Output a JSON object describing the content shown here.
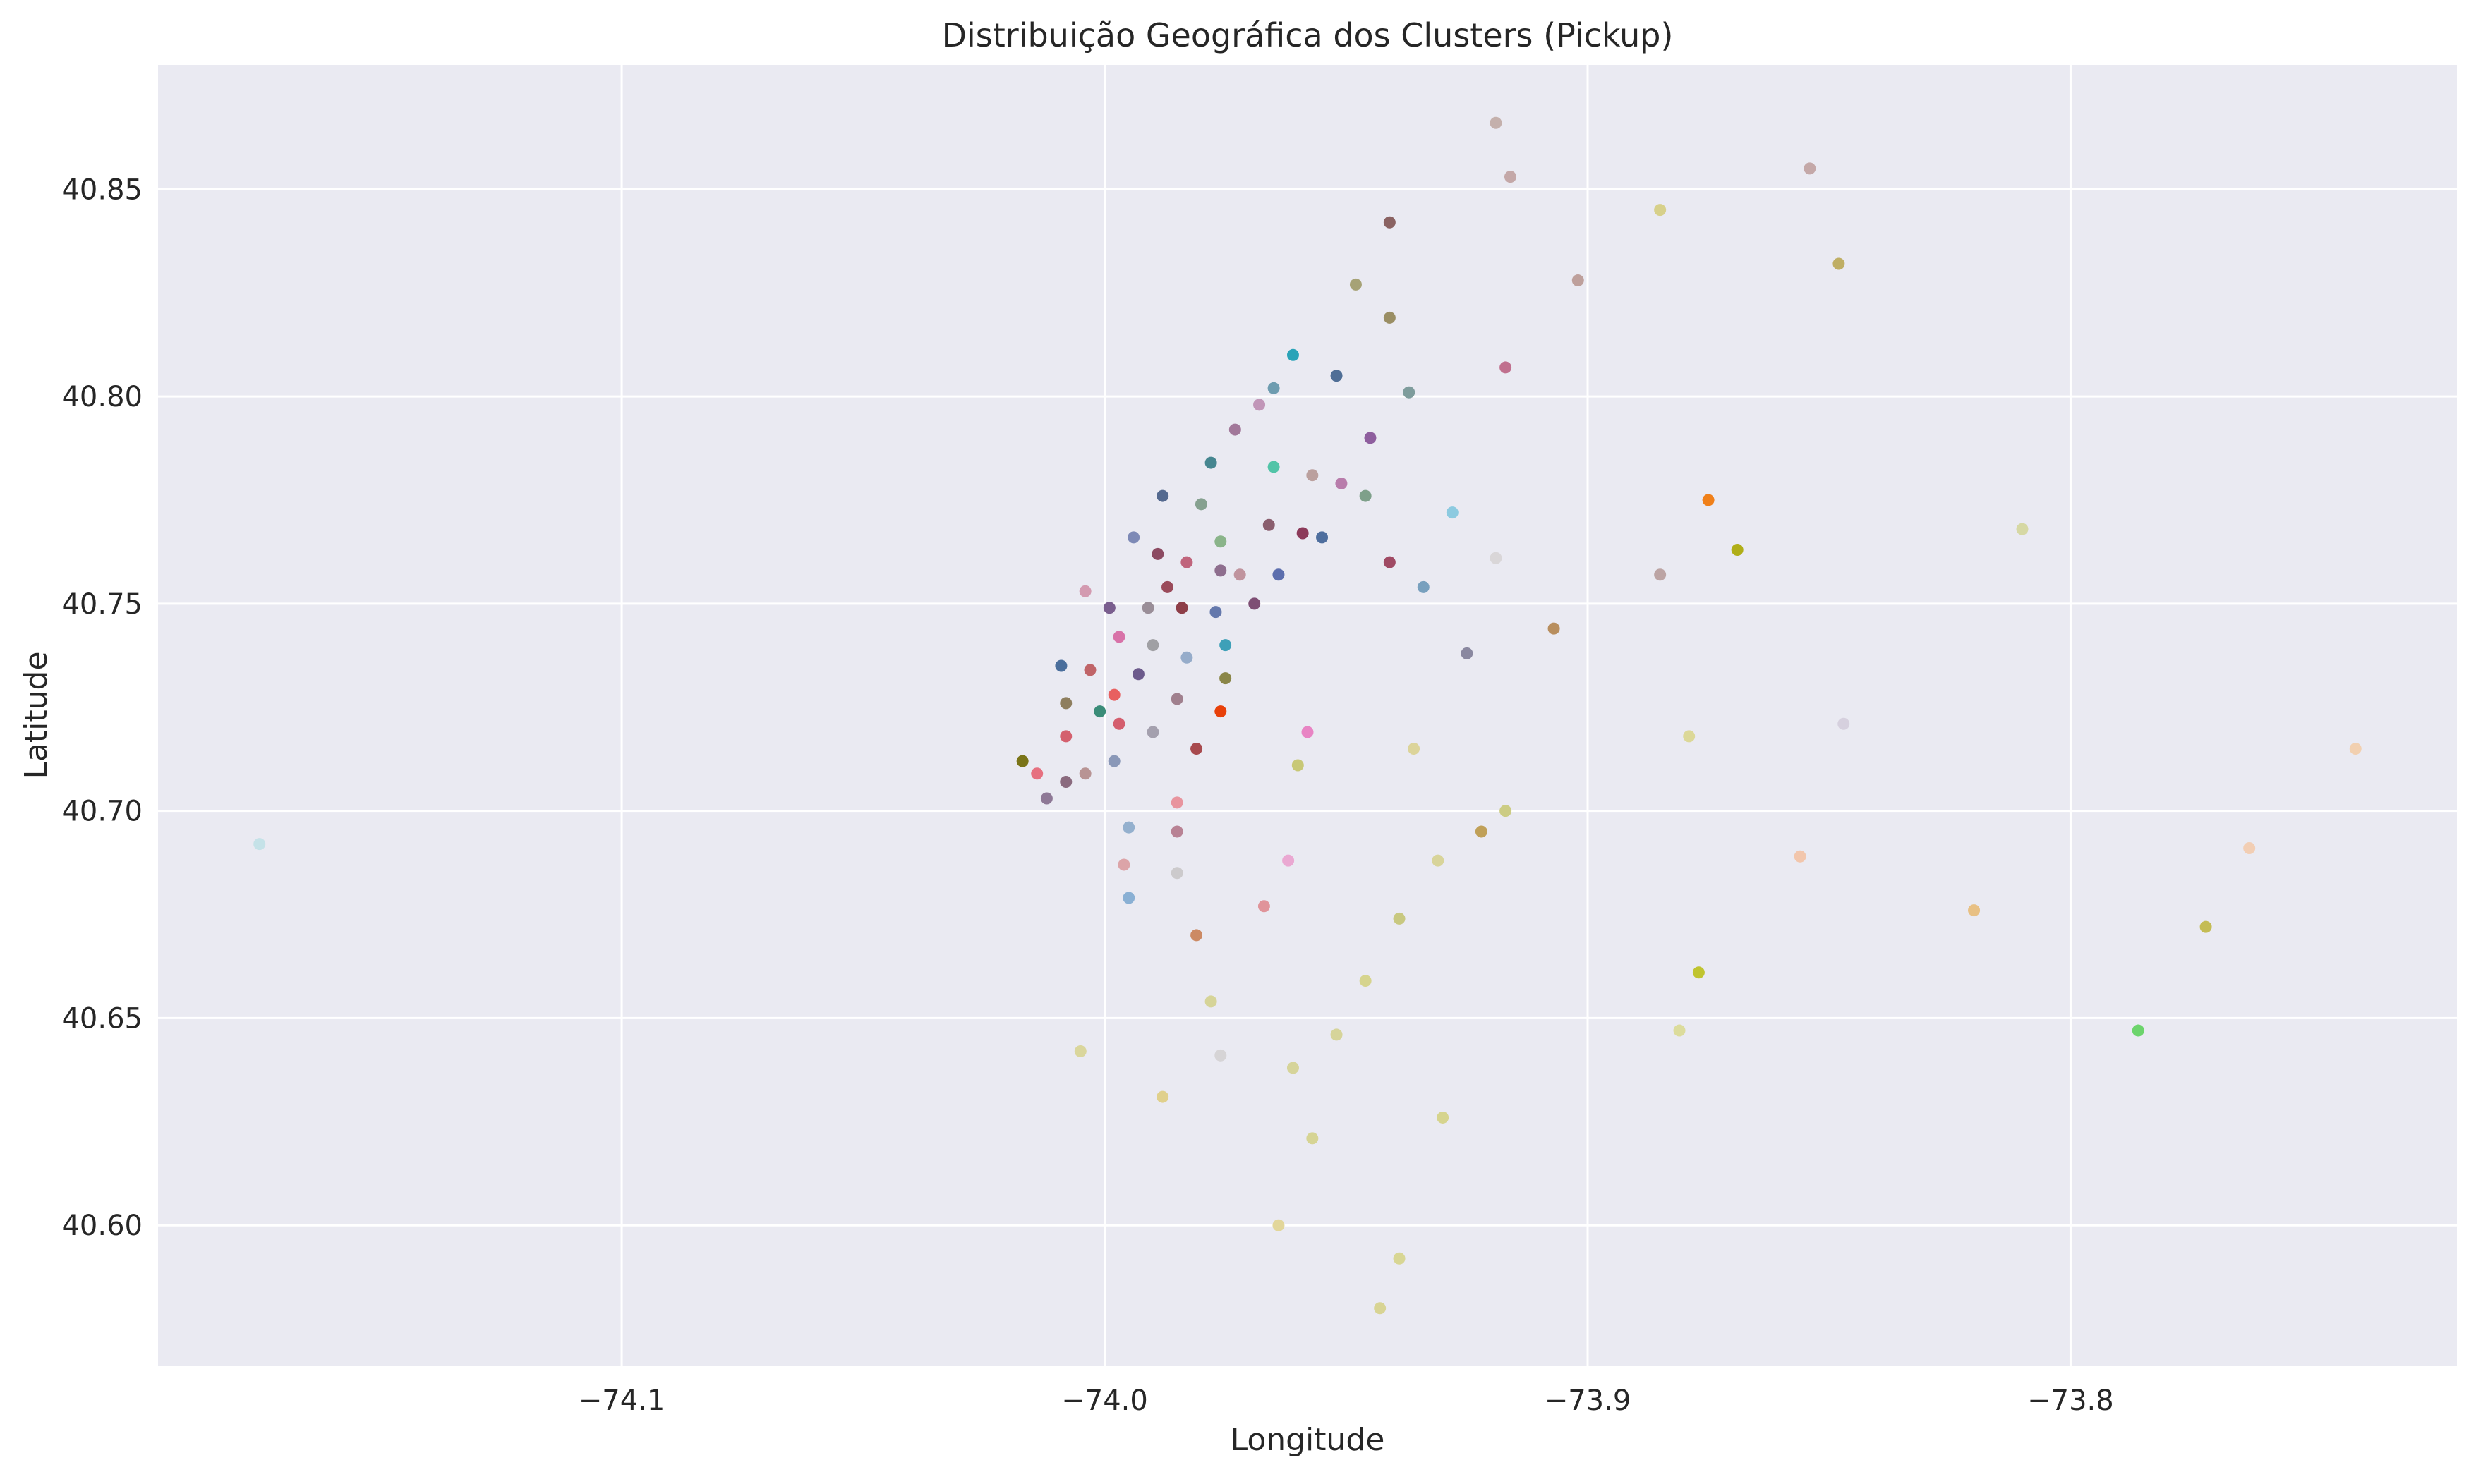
{
  "chart_data": {
    "type": "scatter",
    "title": "Distribuição Geográfica dos Clusters (Pickup)",
    "xlabel": "Longitude",
    "ylabel": "Latitude",
    "xlim": [
      -74.196,
      -73.72
    ],
    "ylim": [
      40.566,
      40.88
    ],
    "xticks": [
      -74.1,
      -74.0,
      -73.9,
      -73.8
    ],
    "xtick_labels": [
      "−74.1",
      "−74.0",
      "−73.9",
      "−73.8"
    ],
    "yticks": [
      40.6,
      40.65,
      40.7,
      40.75,
      40.8,
      40.85
    ],
    "ytick_labels": [
      "40.60",
      "40.65",
      "40.70",
      "40.75",
      "40.80",
      "40.85"
    ],
    "grid": true,
    "background": "#eaeaf2",
    "grid_color": "#ffffff",
    "points": [
      {
        "x": -74.175,
        "y": 40.692,
        "color": "#c5e2e8"
      },
      {
        "x": -74.004,
        "y": 40.753,
        "color": "#d39ab0"
      },
      {
        "x": -73.999,
        "y": 40.749,
        "color": "#7a5e8e"
      },
      {
        "x": -73.994,
        "y": 40.766,
        "color": "#7d89b6"
      },
      {
        "x": -73.988,
        "y": 40.776,
        "color": "#54698f"
      },
      {
        "x": -73.989,
        "y": 40.762,
        "color": "#8c4a62"
      },
      {
        "x": -73.983,
        "y": 40.76,
        "color": "#c0647c"
      },
      {
        "x": -73.98,
        "y": 40.774,
        "color": "#86a190"
      },
      {
        "x": -73.978,
        "y": 40.784,
        "color": "#468690"
      },
      {
        "x": -73.973,
        "y": 40.792,
        "color": "#a2789a"
      },
      {
        "x": -73.968,
        "y": 40.798,
        "color": "#c196b8"
      },
      {
        "x": -73.965,
        "y": 40.802,
        "color": "#6e9cb0"
      },
      {
        "x": -73.961,
        "y": 40.81,
        "color": "#2aa3b8"
      },
      {
        "x": -73.952,
        "y": 40.805,
        "color": "#4f6e96"
      },
      {
        "x": -73.937,
        "y": 40.801,
        "color": "#7e9c9c"
      },
      {
        "x": -73.965,
        "y": 40.783,
        "color": "#52c4a8"
      },
      {
        "x": -73.957,
        "y": 40.781,
        "color": "#bba09e"
      },
      {
        "x": -73.951,
        "y": 40.779,
        "color": "#b87cab"
      },
      {
        "x": -73.946,
        "y": 40.776,
        "color": "#7ea08a"
      },
      {
        "x": -73.945,
        "y": 40.79,
        "color": "#8e5e9e"
      },
      {
        "x": -73.941,
        "y": 40.842,
        "color": "#8a6262"
      },
      {
        "x": -73.941,
        "y": 40.819,
        "color": "#9a8e64"
      },
      {
        "x": -73.948,
        "y": 40.827,
        "color": "#a6a276"
      },
      {
        "x": -73.919,
        "y": 40.866,
        "color": "#c4b0ac"
      },
      {
        "x": -73.916,
        "y": 40.853,
        "color": "#c4a8a8"
      },
      {
        "x": -73.917,
        "y": 40.807,
        "color": "#c0708e"
      },
      {
        "x": -73.902,
        "y": 40.828,
        "color": "#bea09c"
      },
      {
        "x": -73.885,
        "y": 40.845,
        "color": "#d7d08a"
      },
      {
        "x": -73.854,
        "y": 40.855,
        "color": "#c4a8a8"
      },
      {
        "x": -73.848,
        "y": 40.832,
        "color": "#bfae64"
      },
      {
        "x": -73.976,
        "y": 40.765,
        "color": "#8ab48a"
      },
      {
        "x": -73.976,
        "y": 40.758,
        "color": "#8e6e8e"
      },
      {
        "x": -73.972,
        "y": 40.757,
        "color": "#c0949e"
      },
      {
        "x": -73.966,
        "y": 40.769,
        "color": "#8a5e6e"
      },
      {
        "x": -73.959,
        "y": 40.767,
        "color": "#8c3a5a"
      },
      {
        "x": -73.955,
        "y": 40.766,
        "color": "#4e6e9e"
      },
      {
        "x": -73.964,
        "y": 40.757,
        "color": "#5c6eae"
      },
      {
        "x": -73.941,
        "y": 40.76,
        "color": "#a04a64"
      },
      {
        "x": -73.934,
        "y": 40.754,
        "color": "#78a0be"
      },
      {
        "x": -73.928,
        "y": 40.772,
        "color": "#8ccae0"
      },
      {
        "x": -73.919,
        "y": 40.761,
        "color": "#d9d6d8"
      },
      {
        "x": -73.925,
        "y": 40.738,
        "color": "#8a88a0"
      },
      {
        "x": -73.907,
        "y": 40.744,
        "color": "#b88e5e"
      },
      {
        "x": -73.885,
        "y": 40.757,
        "color": "#bca4a4"
      },
      {
        "x": -73.875,
        "y": 40.775,
        "color": "#f0801a"
      },
      {
        "x": -73.869,
        "y": 40.763,
        "color": "#b0ae18"
      },
      {
        "x": -73.81,
        "y": 40.768,
        "color": "#d6d8a4"
      },
      {
        "x": -73.987,
        "y": 40.754,
        "color": "#9a4a5a"
      },
      {
        "x": -73.984,
        "y": 40.749,
        "color": "#8e3e48"
      },
      {
        "x": -73.977,
        "y": 40.748,
        "color": "#6478ac"
      },
      {
        "x": -73.969,
        "y": 40.75,
        "color": "#7e4e74"
      },
      {
        "x": -73.991,
        "y": 40.749,
        "color": "#9a8e98"
      },
      {
        "x": -73.997,
        "y": 40.742,
        "color": "#d872a8"
      },
      {
        "x": -73.99,
        "y": 40.74,
        "color": "#a0a0a4"
      },
      {
        "x": -73.983,
        "y": 40.737,
        "color": "#96acca"
      },
      {
        "x": -73.975,
        "y": 40.74,
        "color": "#3ea0b8"
      },
      {
        "x": -73.975,
        "y": 40.732,
        "color": "#8a8648"
      },
      {
        "x": -74.009,
        "y": 40.735,
        "color": "#4a6e9c"
      },
      {
        "x": -74.003,
        "y": 40.734,
        "color": "#c06468"
      },
      {
        "x": -73.993,
        "y": 40.733,
        "color": "#6c5a8c"
      },
      {
        "x": -73.998,
        "y": 40.728,
        "color": "#e86060"
      },
      {
        "x": -73.985,
        "y": 40.727,
        "color": "#a0808e"
      },
      {
        "x": -74.008,
        "y": 40.726,
        "color": "#8e7e5e"
      },
      {
        "x": -74.001,
        "y": 40.724,
        "color": "#3a8c78"
      },
      {
        "x": -73.997,
        "y": 40.721,
        "color": "#d45e6e"
      },
      {
        "x": -73.99,
        "y": 40.719,
        "color": "#a4a0ae"
      },
      {
        "x": -73.976,
        "y": 40.724,
        "color": "#e8400a"
      },
      {
        "x": -73.981,
        "y": 40.715,
        "color": "#a84a4e"
      },
      {
        "x": -74.008,
        "y": 40.718,
        "color": "#d4606e"
      },
      {
        "x": -74.017,
        "y": 40.712,
        "color": "#7a7418"
      },
      {
        "x": -73.998,
        "y": 40.712,
        "color": "#8a98b8"
      },
      {
        "x": -74.014,
        "y": 40.709,
        "color": "#e67080"
      },
      {
        "x": -74.004,
        "y": 40.709,
        "color": "#b89494"
      },
      {
        "x": -74.008,
        "y": 40.707,
        "color": "#8a6a7e"
      },
      {
        "x": -74.012,
        "y": 40.703,
        "color": "#8e7896"
      },
      {
        "x": -73.958,
        "y": 40.719,
        "color": "#e884c4"
      },
      {
        "x": -73.96,
        "y": 40.711,
        "color": "#c8c876"
      },
      {
        "x": -73.936,
        "y": 40.715,
        "color": "#dcd49a"
      },
      {
        "x": -73.879,
        "y": 40.718,
        "color": "#dcd898"
      },
      {
        "x": -73.847,
        "y": 40.721,
        "color": "#d6d0de"
      },
      {
        "x": -73.741,
        "y": 40.715,
        "color": "#f2d0b0"
      },
      {
        "x": -73.985,
        "y": 40.702,
        "color": "#e8949e"
      },
      {
        "x": -73.995,
        "y": 40.696,
        "color": "#94b0ce"
      },
      {
        "x": -73.985,
        "y": 40.695,
        "color": "#b88294"
      },
      {
        "x": -73.917,
        "y": 40.7,
        "color": "#cccc84"
      },
      {
        "x": -73.922,
        "y": 40.695,
        "color": "#c0a058"
      },
      {
        "x": -73.931,
        "y": 40.688,
        "color": "#d8d49a"
      },
      {
        "x": -73.962,
        "y": 40.688,
        "color": "#eaa8d2"
      },
      {
        "x": -73.996,
        "y": 40.687,
        "color": "#dca4a8"
      },
      {
        "x": -73.985,
        "y": 40.685,
        "color": "#cccacc"
      },
      {
        "x": -73.995,
        "y": 40.679,
        "color": "#8ab0d4"
      },
      {
        "x": -73.967,
        "y": 40.677,
        "color": "#e0949a"
      },
      {
        "x": -73.981,
        "y": 40.67,
        "color": "#cc8a64"
      },
      {
        "x": -73.939,
        "y": 40.674,
        "color": "#c8c880"
      },
      {
        "x": -73.856,
        "y": 40.689,
        "color": "#f2c6ac"
      },
      {
        "x": -73.82,
        "y": 40.676,
        "color": "#e8c084"
      },
      {
        "x": -73.763,
        "y": 40.691,
        "color": "#f2ceb4"
      },
      {
        "x": -73.772,
        "y": 40.672,
        "color": "#c4bc54"
      },
      {
        "x": -73.877,
        "y": 40.661,
        "color": "#c0c430"
      },
      {
        "x": -73.946,
        "y": 40.659,
        "color": "#d6d48e"
      },
      {
        "x": -73.978,
        "y": 40.654,
        "color": "#d6d498"
      },
      {
        "x": -73.952,
        "y": 40.646,
        "color": "#d6d49a"
      },
      {
        "x": -73.881,
        "y": 40.647,
        "color": "#dcdc9c"
      },
      {
        "x": -73.786,
        "y": 40.647,
        "color": "#6cd46c"
      },
      {
        "x": -74.005,
        "y": 40.642,
        "color": "#dad69c"
      },
      {
        "x": -73.976,
        "y": 40.641,
        "color": "#d6d4d6"
      },
      {
        "x": -73.961,
        "y": 40.638,
        "color": "#d6d49a"
      },
      {
        "x": -73.988,
        "y": 40.631,
        "color": "#e0d08c"
      },
      {
        "x": -73.93,
        "y": 40.626,
        "color": "#d6d48e"
      },
      {
        "x": -73.957,
        "y": 40.621,
        "color": "#d6d494"
      },
      {
        "x": -73.964,
        "y": 40.6,
        "color": "#e2d69a"
      },
      {
        "x": -73.939,
        "y": 40.592,
        "color": "#d8d694"
      },
      {
        "x": -73.943,
        "y": 40.58,
        "color": "#d8d494"
      }
    ]
  }
}
